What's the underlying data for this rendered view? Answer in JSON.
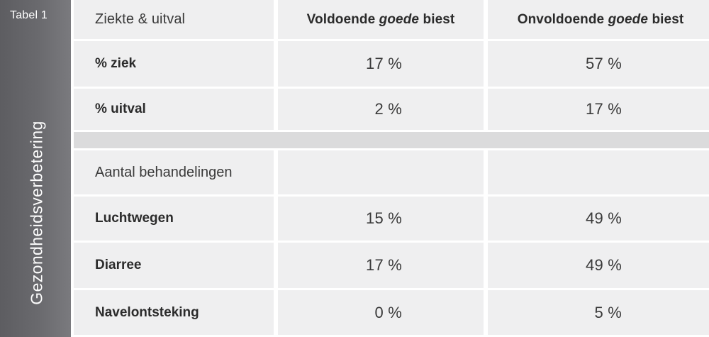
{
  "sidebar": {
    "table_label": "Tabel 1",
    "vertical_title": "Gezondheidsverbetering"
  },
  "header": {
    "left": "Ziekte & uitval",
    "col2": {
      "prefix": "Voldoende",
      "emphasis": "goede",
      "suffix": "biest"
    },
    "col3": {
      "prefix": "Onvoldoende",
      "emphasis": "goede",
      "suffix": "biest"
    }
  },
  "rows_section1": [
    {
      "label": "% ziek",
      "v1": "17 %",
      "v2": "57 %"
    },
    {
      "label": "% uitval",
      "v1": "2 %",
      "v2": "17 %"
    }
  ],
  "section2": {
    "label": "Aantal behandelingen"
  },
  "rows_section2": [
    {
      "label": "Luchtwegen",
      "v1": "15 %",
      "v2": "49 %"
    },
    {
      "label": "Diarree",
      "v1": "17 %",
      "v2": "49 %"
    },
    {
      "label": "Navelontsteking",
      "v1": "0 %",
      "v2": "5 %"
    }
  ],
  "colors": {
    "sidebar_dark": "#5d5d61",
    "cell_bg": "#efeff0",
    "spacer_bg": "#dbdbdc"
  }
}
